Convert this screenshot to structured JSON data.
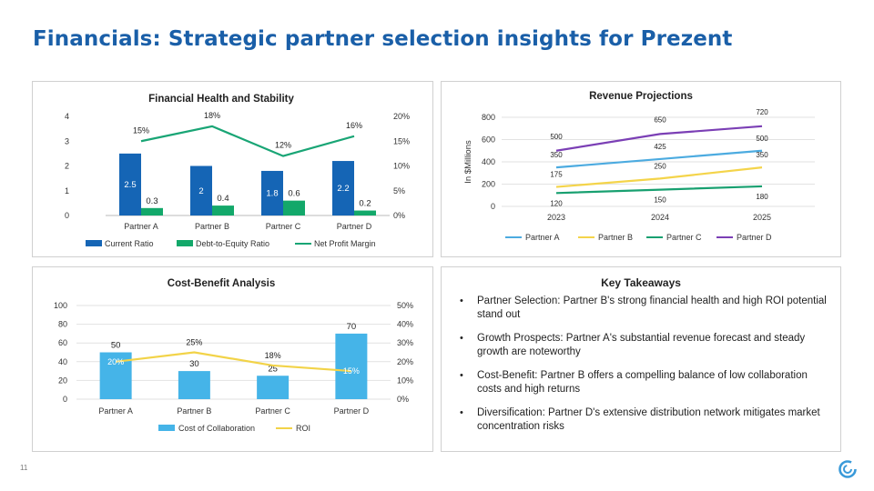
{
  "slide": {
    "title": "Financials: Strategic partner selection insights for Prezent",
    "page_number": "11"
  },
  "key_takeaways": {
    "title": "Key Takeaways",
    "items": [
      "Partner Selection: Partner B's strong financial health and high ROI potential stand out",
      "Growth Prospects: Partner A's substantial revenue forecast and steady growth are noteworthy",
      "Cost-Benefit: Partner B offers a compelling balance of low collaboration costs and high returns",
      "Diversification: Partner D's extensive distribution network mitigates market concentration risks"
    ]
  },
  "colors": {
    "title": "#1a5fa8",
    "current_ratio": "#1565b5",
    "debt_to_equity": "#13a86a",
    "net_profit_margin": "#19a575",
    "partner_a": "#4cabe0",
    "partner_b": "#f4d44a",
    "partner_c": "#18a070",
    "partner_d": "#7b3fb5",
    "cost": "#45b4e8",
    "roi": "#f2d348",
    "logo": "#3a9ad9"
  },
  "chart_data": [
    {
      "type": "bar",
      "title": "Financial Health and Stability",
      "categories": [
        "Partner A",
        "Partner B",
        "Partner C",
        "Partner D"
      ],
      "series": [
        {
          "name": "Current Ratio",
          "kind": "bar",
          "axis": "left",
          "values": [
            2.5,
            2,
            1.8,
            2.2
          ]
        },
        {
          "name": "Debt-to-Equity Ratio",
          "kind": "bar",
          "axis": "left",
          "values": [
            0.3,
            0.4,
            0.6,
            0.2
          ]
        },
        {
          "name": "Net Profit Margin",
          "kind": "line",
          "axis": "right",
          "values": [
            15,
            18,
            12,
            16
          ]
        }
      ],
      "value_labels": [
        [
          "2.5",
          "2",
          "1.8",
          "2.2"
        ],
        [
          "0.3",
          "0.4",
          "0.6",
          "0.2"
        ],
        [
          "15%",
          "18%",
          "12%",
          "16%"
        ]
      ],
      "ylim": [
        0,
        4
      ],
      "yticks": [
        "0",
        "1",
        "2",
        "3",
        "4"
      ],
      "y2lim": [
        0,
        20
      ],
      "y2ticks": [
        "0%",
        "5%",
        "10%",
        "15%",
        "20%"
      ],
      "grid": false,
      "legend": "bottom"
    },
    {
      "type": "line",
      "title": "Revenue Projections",
      "ylabel": "In $Millions",
      "x": [
        "2023",
        "2024",
        "2025"
      ],
      "series": [
        {
          "name": "Partner A",
          "values": [
            350,
            425,
            500
          ]
        },
        {
          "name": "Partner B",
          "values": [
            175,
            250,
            350
          ]
        },
        {
          "name": "Partner C",
          "values": [
            120,
            150,
            180
          ]
        },
        {
          "name": "Partner D",
          "values": [
            500,
            650,
            720
          ]
        }
      ],
      "ylim": [
        0,
        800
      ],
      "yticks": [
        "0",
        "200",
        "400",
        "600",
        "800"
      ],
      "grid": true,
      "legend": "bottom"
    },
    {
      "type": "bar",
      "title": "Cost-Benefit Analysis",
      "categories": [
        "Partner A",
        "Partner B",
        "Partner C",
        "Partner D"
      ],
      "series": [
        {
          "name": "Cost of Collaboration",
          "kind": "bar",
          "axis": "left",
          "values": [
            50,
            30,
            25,
            70
          ]
        },
        {
          "name": "ROI",
          "kind": "line",
          "axis": "right",
          "values": [
            20,
            25,
            18,
            15
          ]
        }
      ],
      "value_labels": [
        [
          "50",
          "30",
          "25",
          "70"
        ],
        [
          "20%",
          "25%",
          "18%",
          "15%"
        ]
      ],
      "ylim": [
        0,
        100
      ],
      "yticks": [
        "0",
        "20",
        "40",
        "60",
        "80",
        "100"
      ],
      "y2lim": [
        0,
        50
      ],
      "y2ticks": [
        "0%",
        "10%",
        "20%",
        "30%",
        "40%",
        "50%"
      ],
      "grid": true,
      "legend": "bottom"
    }
  ]
}
